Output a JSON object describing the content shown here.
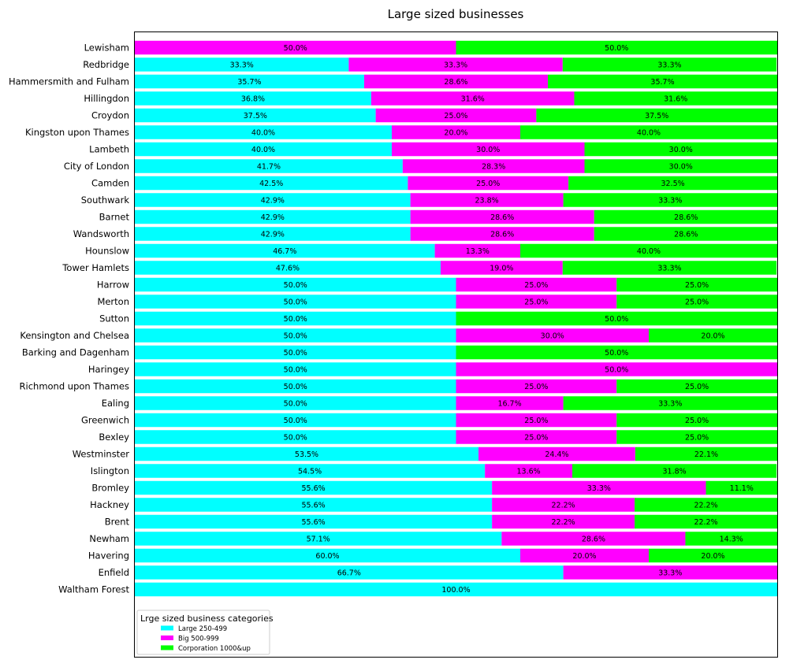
{
  "chart_data": {
    "type": "bar",
    "orientation": "horizontal",
    "stacked": true,
    "title": "Large sized businesses",
    "xlim": [
      0,
      100
    ],
    "categories": [
      "Lewisham",
      "Redbridge",
      "Hammersmith and Fulham",
      "Hillingdon",
      "Croydon",
      "Kingston upon Thames",
      "Lambeth",
      "City of London",
      "Camden",
      "Southwark",
      "Barnet",
      "Wandsworth",
      "Hounslow",
      "Tower Hamlets",
      "Harrow",
      "Merton",
      "Sutton",
      "Kensington and Chelsea",
      "Barking and Dagenham",
      "Haringey",
      "Richmond upon Thames",
      "Ealing",
      "Greenwich",
      "Bexley",
      "Westminster",
      "Islington",
      "Bromley",
      "Hackney",
      "Brent",
      "Newham",
      "Havering",
      "Enfield",
      "Waltham Forest"
    ],
    "series": [
      {
        "name": "Large 250-499",
        "color": "#00ffff",
        "values": [
          0,
          33.3,
          35.7,
          36.8,
          37.5,
          40.0,
          40.0,
          41.7,
          42.5,
          42.9,
          42.9,
          42.9,
          46.7,
          47.6,
          50.0,
          50.0,
          50.0,
          50.0,
          50.0,
          50.0,
          50.0,
          50.0,
          50.0,
          50.0,
          53.5,
          54.5,
          55.6,
          55.6,
          55.6,
          57.1,
          60.0,
          66.7,
          100.0
        ]
      },
      {
        "name": "Big 500-999",
        "color": "#ff00ff",
        "values": [
          50.0,
          33.3,
          28.6,
          31.6,
          25.0,
          20.0,
          30.0,
          28.3,
          25.0,
          23.8,
          28.6,
          28.6,
          13.3,
          19.0,
          25.0,
          25.0,
          0,
          30.0,
          0,
          50.0,
          25.0,
          16.7,
          25.0,
          25.0,
          24.4,
          13.6,
          33.3,
          22.2,
          22.2,
          28.6,
          20.0,
          33.3,
          0
        ]
      },
      {
        "name": "Corporation 1000&up",
        "color": "#00ff00",
        "values": [
          50.0,
          33.3,
          35.7,
          31.6,
          37.5,
          40.0,
          30.0,
          30.0,
          32.5,
          33.3,
          28.6,
          28.6,
          40.0,
          33.3,
          25.0,
          25.0,
          50.0,
          20.0,
          50.0,
          0,
          25.0,
          33.3,
          25.0,
          25.0,
          22.1,
          31.8,
          11.1,
          22.2,
          22.2,
          14.3,
          20.0,
          0,
          0
        ]
      }
    ],
    "legend": {
      "title": "Lrge sized business categories",
      "position": "lower-left"
    },
    "label_format": "{value}%",
    "grid": false
  }
}
